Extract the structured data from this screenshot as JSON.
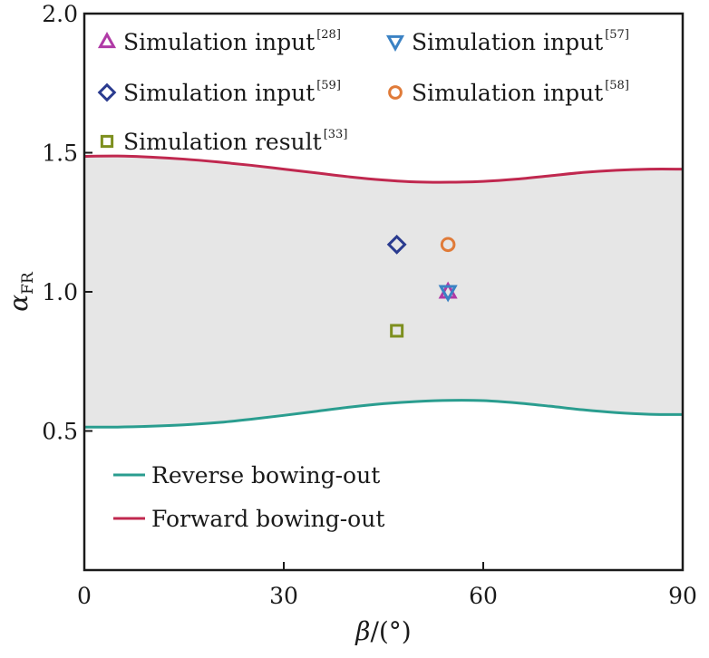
{
  "chart_data": {
    "type": "scatter",
    "xlabel": {
      "symbol": "β",
      "unit": "/(°)"
    },
    "ylabel": {
      "symbol": "α",
      "subscript": "FR"
    },
    "xlim": [
      0,
      90
    ],
    "ylim": [
      0,
      2.0
    ],
    "xticks": [
      "0",
      "30",
      "60",
      "90"
    ],
    "yticks": [
      "0.5",
      "1.0",
      "1.5",
      "2.0"
    ],
    "xtick_values": [
      0,
      30,
      60,
      90
    ],
    "ytick_values": [
      0.5,
      1.0,
      1.5,
      2.0
    ],
    "band_fill": "#e6e6e6",
    "lines": [
      {
        "name": "Reverse bowing-out",
        "color": "#2a9d8f",
        "x": [
          0,
          5,
          10,
          15,
          20,
          25,
          30,
          35,
          40,
          45,
          50,
          55,
          60,
          65,
          70,
          75,
          80,
          85,
          90
        ],
        "y": [
          0.514,
          0.514,
          0.517,
          0.522,
          0.53,
          0.542,
          0.556,
          0.571,
          0.586,
          0.598,
          0.606,
          0.61,
          0.609,
          0.601,
          0.589,
          0.576,
          0.566,
          0.56,
          0.559
        ]
      },
      {
        "name": "Forward bowing-out",
        "color": "#c0284f",
        "x": [
          0,
          5,
          10,
          15,
          20,
          25,
          30,
          35,
          40,
          45,
          50,
          55,
          60,
          65,
          70,
          75,
          80,
          85,
          90
        ],
        "y": [
          1.487,
          1.488,
          1.484,
          1.477,
          1.467,
          1.455,
          1.441,
          1.427,
          1.413,
          1.402,
          1.395,
          1.394,
          1.397,
          1.405,
          1.417,
          1.429,
          1.437,
          1.441,
          1.441
        ]
      }
    ],
    "markers": [
      {
        "label": "Simulation input",
        "ref": "[28]",
        "shape": "triangle-up",
        "color": "#b03aa6",
        "x": 54.7,
        "y": 1.0
      },
      {
        "label": "Simulation input",
        "ref": "[57]",
        "shape": "triangle-down",
        "color": "#3b82c4",
        "x": 54.7,
        "y": 1.0
      },
      {
        "label": "Simulation input",
        "ref": "[59]",
        "shape": "diamond",
        "color": "#2a3b8f",
        "x": 47,
        "y": 1.17
      },
      {
        "label": "Simulation input",
        "ref": "[58]",
        "shape": "circle",
        "color": "#e07b39",
        "x": 54.7,
        "y": 1.17
      },
      {
        "label": "Simulation result",
        "ref": "[33]",
        "shape": "square",
        "color": "#7d8f1e",
        "x": 47,
        "y": 0.86
      }
    ]
  }
}
